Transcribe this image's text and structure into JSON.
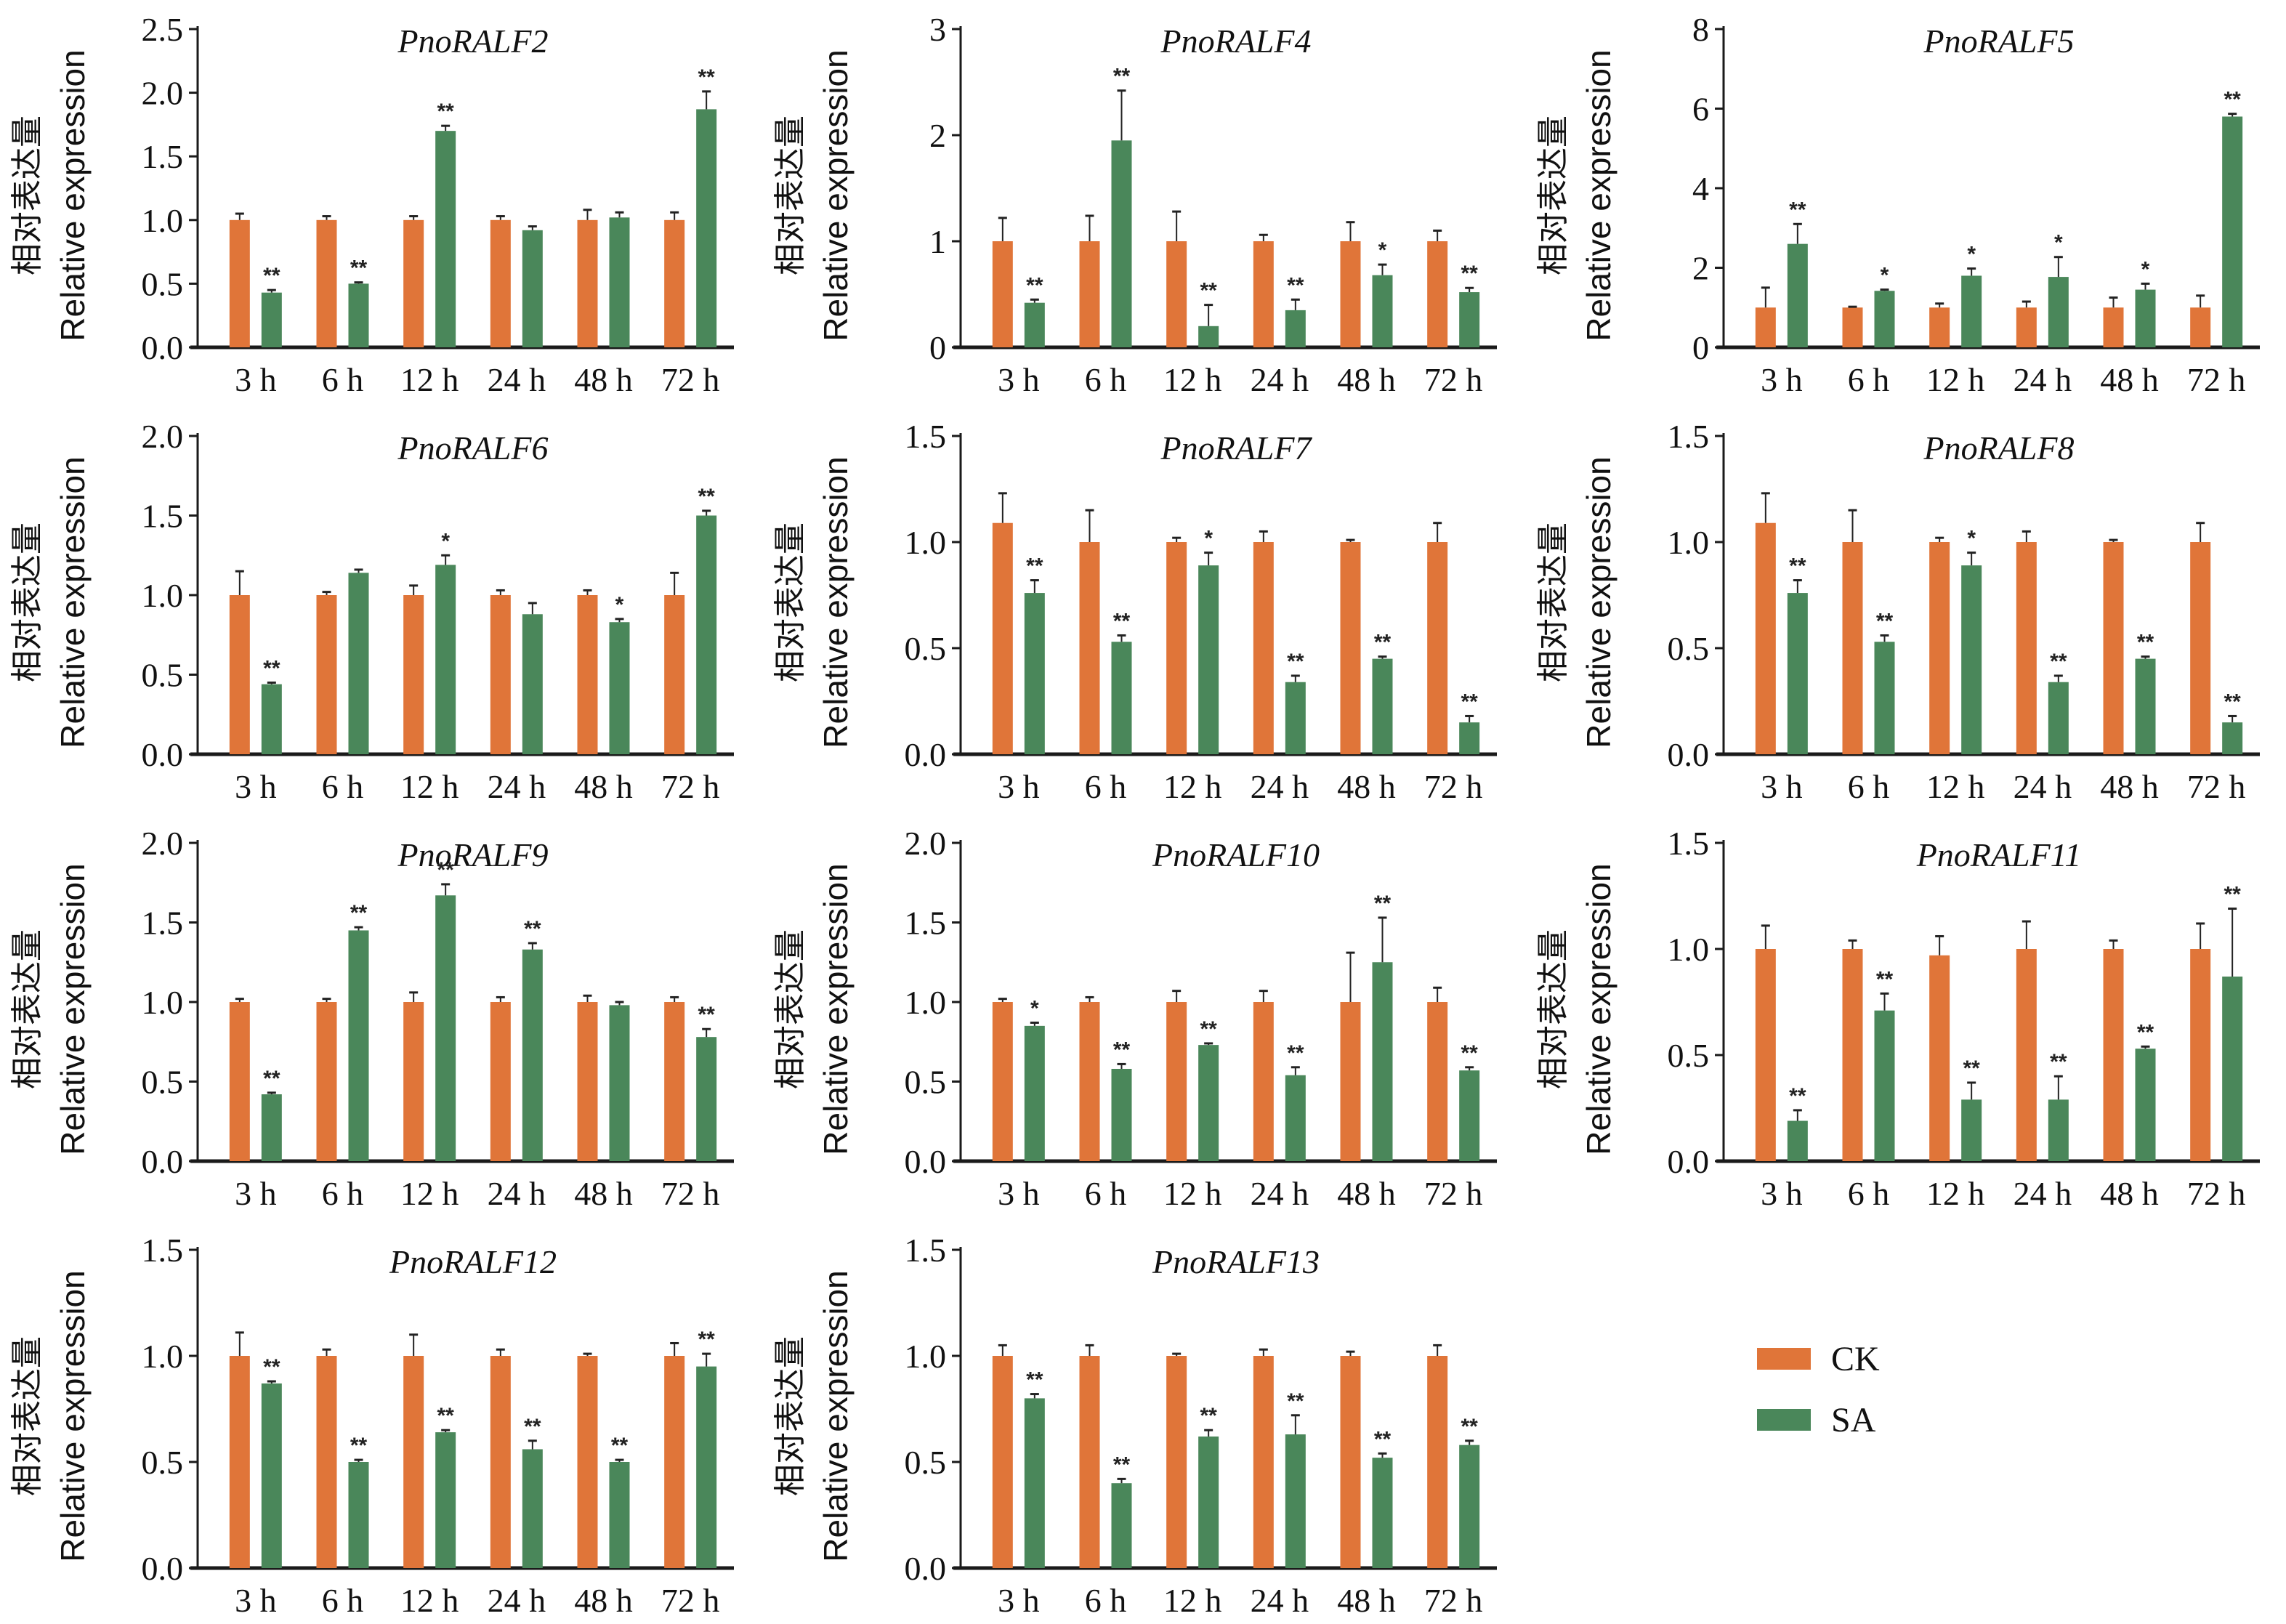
{
  "figure": {
    "colors": {
      "CK": "#E07539",
      "SA": "#4A875A",
      "axis": "#1a1a1a"
    },
    "ylabel_cn": "相对表达量",
    "ylabel_en": "Relative expression",
    "legend": [
      {
        "label": "CK",
        "color": "#E07539"
      },
      {
        "label": "SA",
        "color": "#4A875A"
      }
    ]
  },
  "chart_data": [
    {
      "type": "bar",
      "title": "PnoRALF2",
      "categories": [
        "3 h",
        "6 h",
        "12 h",
        "24 h",
        "48 h",
        "72 h"
      ],
      "ylim": [
        0,
        2.5
      ],
      "yticks": [
        "0.0",
        "0.5",
        "1.0",
        "1.5",
        "2.0",
        "2.5"
      ],
      "ytick_values": [
        0,
        0.5,
        1.0,
        1.5,
        2.0,
        2.5
      ],
      "xlabel": "",
      "ylabel": "相对表达量 Relative expression",
      "series": [
        {
          "name": "CK",
          "values": [
            1.0,
            1.0,
            1.0,
            1.0,
            1.0,
            1.0
          ],
          "errors": [
            0.05,
            0.03,
            0.03,
            0.03,
            0.08,
            0.06
          ]
        },
        {
          "name": "SA",
          "values": [
            0.43,
            0.5,
            1.7,
            0.92,
            1.02,
            1.87
          ],
          "errors": [
            0.02,
            0.01,
            0.04,
            0.03,
            0.04,
            0.14
          ],
          "significance": [
            "**",
            "**",
            "**",
            "",
            "",
            "**"
          ]
        }
      ]
    },
    {
      "type": "bar",
      "title": "PnoRALF4",
      "categories": [
        "3 h",
        "6 h",
        "12 h",
        "24 h",
        "48 h",
        "72 h"
      ],
      "ylim": [
        0,
        3
      ],
      "yticks": [
        "0",
        "1",
        "2",
        "3"
      ],
      "ytick_values": [
        0,
        1,
        2,
        3
      ],
      "xlabel": "",
      "ylabel": "相对表达量 Relative expression",
      "series": [
        {
          "name": "CK",
          "values": [
            1.0,
            1.0,
            1.0,
            1.0,
            1.0,
            1.0
          ],
          "errors": [
            0.22,
            0.24,
            0.28,
            0.06,
            0.18,
            0.1
          ]
        },
        {
          "name": "SA",
          "values": [
            0.42,
            1.95,
            0.2,
            0.35,
            0.68,
            0.52
          ],
          "errors": [
            0.03,
            0.47,
            0.2,
            0.1,
            0.1,
            0.04
          ],
          "significance": [
            "**",
            "**",
            "**",
            "**",
            "*",
            "**"
          ]
        }
      ]
    },
    {
      "type": "bar",
      "title": "PnoRALF5",
      "categories": [
        "3 h",
        "6 h",
        "12 h",
        "24 h",
        "48 h",
        "72 h"
      ],
      "ylim": [
        0,
        8
      ],
      "yticks": [
        "0",
        "2",
        "4",
        "6",
        "8"
      ],
      "ytick_values": [
        0,
        2,
        4,
        6,
        8
      ],
      "xlabel": "",
      "ylabel": "相对表达量 Relative expression",
      "series": [
        {
          "name": "CK",
          "values": [
            1.0,
            1.0,
            1.0,
            1.0,
            1.0,
            1.0
          ],
          "errors": [
            0.5,
            0.02,
            0.1,
            0.15,
            0.25,
            0.3
          ]
        },
        {
          "name": "SA",
          "values": [
            2.6,
            1.42,
            1.8,
            1.77,
            1.45,
            5.8
          ],
          "errors": [
            0.5,
            0.03,
            0.18,
            0.5,
            0.15,
            0.07
          ],
          "significance": [
            "**",
            "*",
            "*",
            "*",
            "*",
            "**"
          ]
        }
      ]
    },
    {
      "type": "bar",
      "title": "PnoRALF6",
      "categories": [
        "3 h",
        "6 h",
        "12 h",
        "24 h",
        "48 h",
        "72 h"
      ],
      "ylim": [
        0,
        2.0
      ],
      "yticks": [
        "0.0",
        "0.5",
        "1.0",
        "1.5",
        "2.0"
      ],
      "ytick_values": [
        0,
        0.5,
        1.0,
        1.5,
        2.0
      ],
      "xlabel": "",
      "ylabel": "相对表达量 Relative expression",
      "series": [
        {
          "name": "CK",
          "values": [
            1.0,
            1.0,
            1.0,
            1.0,
            1.0,
            1.0
          ],
          "errors": [
            0.15,
            0.02,
            0.06,
            0.03,
            0.03,
            0.14
          ]
        },
        {
          "name": "SA",
          "values": [
            0.44,
            1.14,
            1.19,
            0.88,
            0.83,
            1.5
          ],
          "errors": [
            0.01,
            0.02,
            0.06,
            0.07,
            0.02,
            0.03
          ],
          "significance": [
            "**",
            "",
            "*",
            "",
            "*",
            "**"
          ]
        }
      ]
    },
    {
      "type": "bar",
      "title": "PnoRALF7",
      "categories": [
        "3 h",
        "6 h",
        "12 h",
        "24 h",
        "48 h",
        "72 h"
      ],
      "ylim": [
        0,
        1.5
      ],
      "yticks": [
        "0.0",
        "0.5",
        "1.0",
        "1.5"
      ],
      "ytick_values": [
        0,
        0.5,
        1.0,
        1.5
      ],
      "xlabel": "",
      "ylabel": "相对表达量 Relative expression",
      "series": [
        {
          "name": "CK",
          "values": [
            1.09,
            1.0,
            1.0,
            1.0,
            1.0,
            1.0
          ],
          "errors": [
            0.14,
            0.15,
            0.02,
            0.05,
            0.01,
            0.09
          ]
        },
        {
          "name": "SA",
          "values": [
            0.76,
            0.53,
            0.89,
            0.34,
            0.45,
            0.15
          ],
          "errors": [
            0.06,
            0.03,
            0.06,
            0.03,
            0.01,
            0.03
          ],
          "significance": [
            "**",
            "**",
            "*",
            "**",
            "**",
            "**"
          ]
        }
      ]
    },
    {
      "type": "bar",
      "title": "PnoRALF8",
      "categories": [
        "3 h",
        "6 h",
        "12 h",
        "24 h",
        "48 h",
        "72 h"
      ],
      "ylim": [
        0,
        1.5
      ],
      "yticks": [
        "0.0",
        "0.5",
        "1.0",
        "1.5"
      ],
      "ytick_values": [
        0,
        0.5,
        1.0,
        1.5
      ],
      "xlabel": "",
      "ylabel": "相对表达量 Relative expression",
      "series": [
        {
          "name": "CK",
          "values": [
            1.09,
            1.0,
            1.0,
            1.0,
            1.0,
            1.0
          ],
          "errors": [
            0.14,
            0.15,
            0.02,
            0.05,
            0.01,
            0.09
          ]
        },
        {
          "name": "SA",
          "values": [
            0.76,
            0.53,
            0.89,
            0.34,
            0.45,
            0.15
          ],
          "errors": [
            0.06,
            0.03,
            0.06,
            0.03,
            0.01,
            0.03
          ],
          "significance": [
            "**",
            "**",
            "*",
            "**",
            "**",
            "**"
          ]
        }
      ]
    },
    {
      "type": "bar",
      "title": "PnoRALF9",
      "categories": [
        "3 h",
        "6 h",
        "12 h",
        "24 h",
        "48 h",
        "72 h"
      ],
      "ylim": [
        0,
        2.0
      ],
      "yticks": [
        "0.0",
        "0.5",
        "1.0",
        "1.5",
        "2.0"
      ],
      "ytick_values": [
        0,
        0.5,
        1.0,
        1.5,
        2.0
      ],
      "xlabel": "",
      "ylabel": "相对表达量 Relative expression",
      "series": [
        {
          "name": "CK",
          "values": [
            1.0,
            1.0,
            1.0,
            1.0,
            1.0,
            1.0
          ],
          "errors": [
            0.02,
            0.02,
            0.06,
            0.03,
            0.04,
            0.03
          ]
        },
        {
          "name": "SA",
          "values": [
            0.42,
            1.45,
            1.67,
            1.33,
            0.98,
            0.78
          ],
          "errors": [
            0.01,
            0.02,
            0.07,
            0.04,
            0.02,
            0.05
          ],
          "significance": [
            "**",
            "**",
            "**",
            "**",
            "",
            "**"
          ]
        }
      ]
    },
    {
      "type": "bar",
      "title": "PnoRALF10",
      "categories": [
        "3 h",
        "6 h",
        "12 h",
        "24 h",
        "48 h",
        "72 h"
      ],
      "ylim": [
        0,
        2.0
      ],
      "yticks": [
        "0.0",
        "0.5",
        "1.0",
        "1.5",
        "2.0"
      ],
      "ytick_values": [
        0,
        0.5,
        1.0,
        1.5,
        2.0
      ],
      "xlabel": "",
      "ylabel": "相对表达量 Relative expression",
      "series": [
        {
          "name": "CK",
          "values": [
            1.0,
            1.0,
            1.0,
            1.0,
            1.0,
            1.0
          ],
          "errors": [
            0.02,
            0.03,
            0.07,
            0.07,
            0.31,
            0.09
          ]
        },
        {
          "name": "SA",
          "values": [
            0.85,
            0.58,
            0.73,
            0.54,
            1.25,
            0.57
          ],
          "errors": [
            0.02,
            0.03,
            0.01,
            0.05,
            0.28,
            0.02
          ],
          "significance": [
            "*",
            "**",
            "**",
            "**",
            "**",
            "**"
          ]
        }
      ]
    },
    {
      "type": "bar",
      "title": "PnoRALF11",
      "categories": [
        "3 h",
        "6 h",
        "12 h",
        "24 h",
        "48 h",
        "72 h"
      ],
      "ylim": [
        0,
        1.5
      ],
      "yticks": [
        "0.0",
        "0.5",
        "1.0",
        "1.5"
      ],
      "ytick_values": [
        0,
        0.5,
        1.0,
        1.5
      ],
      "xlabel": "",
      "ylabel": "相对表达量 Relative expression",
      "series": [
        {
          "name": "CK",
          "values": [
            1.0,
            1.0,
            0.97,
            1.0,
            1.0,
            1.0
          ],
          "errors": [
            0.11,
            0.04,
            0.09,
            0.13,
            0.04,
            0.12
          ]
        },
        {
          "name": "SA",
          "values": [
            0.19,
            0.71,
            0.29,
            0.29,
            0.53,
            0.87
          ],
          "errors": [
            0.05,
            0.08,
            0.08,
            0.11,
            0.01,
            0.32
          ],
          "significance": [
            "**",
            "**",
            "**",
            "**",
            "**",
            "**"
          ]
        }
      ]
    },
    {
      "type": "bar",
      "title": "PnoRALF12",
      "categories": [
        "3 h",
        "6 h",
        "12 h",
        "24 h",
        "48 h",
        "72 h"
      ],
      "ylim": [
        0,
        1.5
      ],
      "yticks": [
        "0.0",
        "0.5",
        "1.0",
        "1.5"
      ],
      "ytick_values": [
        0,
        0.5,
        1.0,
        1.5
      ],
      "xlabel": "",
      "ylabel": "相对表达量 Relative expression",
      "series": [
        {
          "name": "CK",
          "values": [
            1.0,
            1.0,
            1.0,
            1.0,
            1.0,
            1.0
          ],
          "errors": [
            0.11,
            0.03,
            0.1,
            0.03,
            0.01,
            0.06
          ]
        },
        {
          "name": "SA",
          "values": [
            0.87,
            0.5,
            0.64,
            0.56,
            0.5,
            0.95
          ],
          "errors": [
            0.01,
            0.01,
            0.01,
            0.04,
            0.01,
            0.06
          ],
          "significance": [
            "**",
            "**",
            "**",
            "**",
            "**",
            "**"
          ]
        }
      ]
    },
    {
      "type": "bar",
      "title": "PnoRALF13",
      "categories": [
        "3 h",
        "6 h",
        "12 h",
        "24 h",
        "48 h",
        "72 h"
      ],
      "ylim": [
        0,
        1.5
      ],
      "yticks": [
        "0.0",
        "0.5",
        "1.0",
        "1.5"
      ],
      "ytick_values": [
        0,
        0.5,
        1.0,
        1.5
      ],
      "xlabel": "",
      "ylabel": "相对表达量 Relative expression",
      "series": [
        {
          "name": "CK",
          "values": [
            1.0,
            1.0,
            1.0,
            1.0,
            1.0,
            1.0
          ],
          "errors": [
            0.05,
            0.05,
            0.01,
            0.03,
            0.02,
            0.05
          ]
        },
        {
          "name": "SA",
          "values": [
            0.8,
            0.4,
            0.62,
            0.63,
            0.52,
            0.58
          ],
          "errors": [
            0.02,
            0.02,
            0.03,
            0.09,
            0.02,
            0.02
          ],
          "significance": [
            "**",
            "**",
            "**",
            "**",
            "**",
            "**"
          ]
        }
      ]
    }
  ]
}
